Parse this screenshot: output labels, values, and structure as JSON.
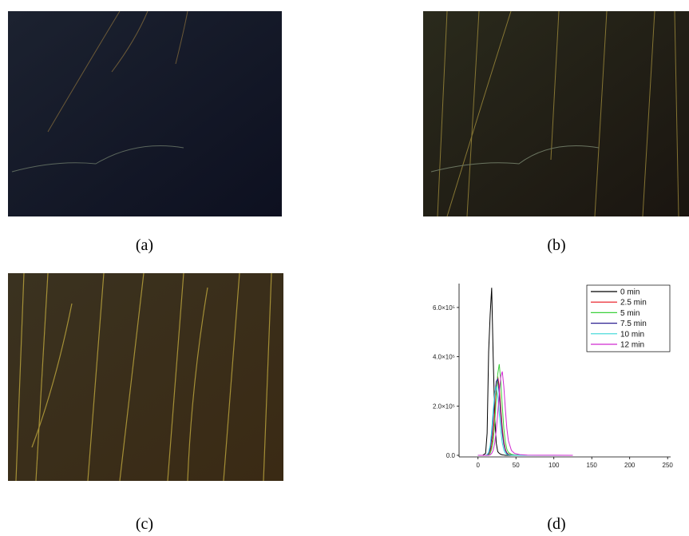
{
  "captions": [
    "(a)",
    "(b)",
    "(c)",
    "(d)"
  ],
  "chart_data": {
    "type": "line",
    "x": [
      0,
      6,
      10,
      12,
      14,
      16,
      18,
      20,
      22,
      24,
      26,
      28,
      30,
      32,
      34,
      36,
      38,
      40,
      44,
      48,
      55,
      65,
      80,
      100,
      125
    ],
    "series": [
      {
        "name": "0 min",
        "color": "#000000",
        "values": [
          0,
          0,
          8000,
          90000,
          420000,
          570000,
          680000,
          400000,
          160000,
          50000,
          15000,
          8000,
          4000,
          2000,
          1000,
          0,
          0,
          0,
          0,
          0,
          0,
          0,
          0,
          0,
          0
        ]
      },
      {
        "name": "2.5 min",
        "color": "#e8121a",
        "values": [
          0,
          0,
          0,
          1000,
          5000,
          15000,
          40000,
          90000,
          170000,
          260000,
          320000,
          280000,
          190000,
          110000,
          55000,
          25000,
          10000,
          5000,
          2000,
          1000,
          500,
          0,
          0,
          0,
          0
        ]
      },
      {
        "name": "5 min",
        "color": "#3bd13b",
        "values": [
          0,
          0,
          0,
          0,
          2000,
          8000,
          25000,
          60000,
          130000,
          230000,
          330000,
          370000,
          300000,
          200000,
          110000,
          55000,
          25000,
          12000,
          4000,
          1500,
          500,
          0,
          0,
          0,
          0
        ]
      },
      {
        "name": "7.5 min",
        "color": "#2a1f8f",
        "values": [
          0,
          0,
          0,
          2000,
          8000,
          25000,
          70000,
          150000,
          240000,
          300000,
          310000,
          250000,
          160000,
          90000,
          45000,
          20000,
          8000,
          3000,
          1000,
          500,
          0,
          0,
          0,
          0,
          0
        ]
      },
      {
        "name": "10 min",
        "color": "#36d6d6",
        "values": [
          0,
          0,
          0,
          3000,
          12000,
          40000,
          100000,
          180000,
          250000,
          280000,
          240000,
          170000,
          100000,
          50000,
          22000,
          9000,
          4000,
          2000,
          500,
          0,
          0,
          0,
          0,
          0,
          0
        ]
      },
      {
        "name": "12 min",
        "color": "#d12ad1",
        "values": [
          0,
          0,
          0,
          0,
          0,
          2000,
          8000,
          20000,
          50000,
          100000,
          170000,
          250000,
          320000,
          340000,
          280000,
          190000,
          110000,
          60000,
          20000,
          8000,
          3000,
          1000,
          500,
          200,
          0
        ]
      }
    ],
    "xlim": [
      -25,
      254
    ],
    "ylim": [
      -6500,
      697000
    ],
    "xticks": [
      0,
      50,
      100,
      150,
      200,
      250
    ],
    "yticks": [
      {
        "value": 0,
        "label": "0.0"
      },
      {
        "value": 200000,
        "label": "2.0×10⁵"
      },
      {
        "value": 400000,
        "label": "4.0×10⁵"
      },
      {
        "value": 600000,
        "label": "6.0×10⁵"
      }
    ],
    "legend": "upper right"
  }
}
